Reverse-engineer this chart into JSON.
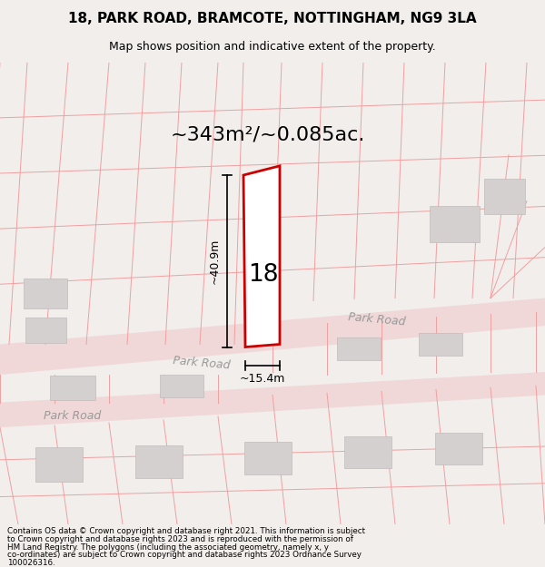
{
  "title_line1": "18, PARK ROAD, BRAMCOTE, NOTTINGHAM, NG9 3LA",
  "title_line2": "Map shows position and indicative extent of the property.",
  "area_text": "~343m²/~0.085ac.",
  "label_18": "18",
  "dim_width": "~15.4m",
  "dim_height": "~40.9m",
  "road_label1": "Park Road",
  "road_label2": "Park Road",
  "road_label3": "Park Road",
  "footer_lines": [
    "Contains OS data © Crown copyright and database right 2021. This information is subject",
    "to Crown copyright and database rights 2023 and is reproduced with the permission of",
    "HM Land Registry. The polygons (including the associated geometry, namely x, y",
    "co-ordinates) are subject to Crown copyright and database rights 2023 Ordnance Survey",
    "100026316."
  ],
  "bg_color": "#f2eeec",
  "map_bg": "#ffffff",
  "road_color": "#f0d8d8",
  "plot_outline_color": "#cc0000",
  "plot_fill_color": "#ffffff",
  "building_fill": "#d4d0d0",
  "building_edge": "#c0bcbc",
  "parcel_line_color": "#f0a0a0",
  "dim_line_color": "#000000",
  "text_color": "#000000",
  "road_text_color": "#999999",
  "fig_width": 6.0,
  "fig_height": 6.25
}
